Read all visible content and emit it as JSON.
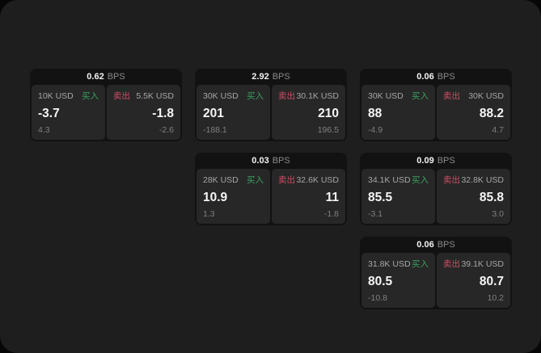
{
  "labels": {
    "buy": "买入",
    "sell": "卖出",
    "bps_unit": "BPS"
  },
  "colors": {
    "buy_green": "#3aa05f",
    "sell_red": "#cc4e64",
    "panel_bg": "#1e1e1e",
    "card_bg": "#121212",
    "tile_bg": "#272727"
  },
  "cards": [
    {
      "bps": "0.62",
      "buy": {
        "amount": "10K USD",
        "price": "-3.7",
        "delta": "4.3"
      },
      "sell": {
        "amount": "5.5K USD",
        "price": "-1.8",
        "delta": "-2.6"
      }
    },
    {
      "bps": "2.92",
      "buy": {
        "amount": "30K USD",
        "price": "201",
        "delta": "-188.1"
      },
      "sell": {
        "amount": "30.1K USD",
        "price": "210",
        "delta": "196.5"
      }
    },
    {
      "bps": "0.06",
      "buy": {
        "amount": "30K USD",
        "price": "88",
        "delta": "-4.9"
      },
      "sell": {
        "amount": "30K USD",
        "price": "88.2",
        "delta": "4.7"
      }
    },
    {
      "bps": "0.03",
      "buy": {
        "amount": "28K USD",
        "price": "10.9",
        "delta": "1.3"
      },
      "sell": {
        "amount": "32.6K USD",
        "price": "11",
        "delta": "-1.8"
      }
    },
    {
      "bps": "0.09",
      "buy": {
        "amount": "34.1K USD",
        "price": "85.5",
        "delta": "-3.1"
      },
      "sell": {
        "amount": "32.8K USD",
        "price": "85.8",
        "delta": "3.0"
      }
    },
    {
      "bps": "0.06",
      "buy": {
        "amount": "31.8K USD",
        "price": "80.5",
        "delta": "-10.8"
      },
      "sell": {
        "amount": "39.1K USD",
        "price": "80.7",
        "delta": "10.2"
      }
    }
  ]
}
